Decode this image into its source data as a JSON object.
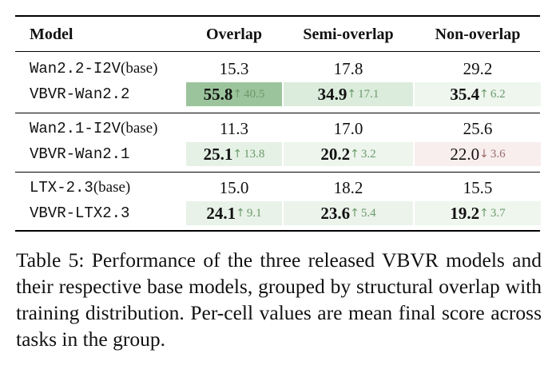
{
  "table": {
    "headers": [
      "Model",
      "Overlap",
      "Semi-overlap",
      "Non-overlap"
    ],
    "groups": [
      {
        "base": {
          "name": "Wan2.2-I2V",
          "suffix": " (base)",
          "values": [
            "15.3",
            "17.8",
            "29.2"
          ]
        },
        "ft": {
          "name": "VBVR-Wan2.2",
          "values": [
            "55.8",
            "34.9",
            "35.4"
          ],
          "deltas": [
            "40.5",
            "17.1",
            "6.2"
          ],
          "directions": [
            "up",
            "up",
            "up"
          ]
        }
      },
      {
        "base": {
          "name": "Wan2.1-I2V",
          "suffix": " (base)",
          "values": [
            "11.3",
            "17.0",
            "25.6"
          ]
        },
        "ft": {
          "name": "VBVR-Wan2.1",
          "values": [
            "25.1",
            "20.2",
            "22.0"
          ],
          "deltas": [
            "13.8",
            "3.2",
            "3.6"
          ],
          "directions": [
            "up",
            "up",
            "down"
          ]
        }
      },
      {
        "base": {
          "name": "LTX-2.3",
          "suffix": " (base)",
          "values": [
            "15.0",
            "18.2",
            "15.5"
          ]
        },
        "ft": {
          "name": "VBVR-LTX2.3",
          "values": [
            "24.1",
            "23.6",
            "19.2"
          ],
          "deltas": [
            "9.1",
            "5.4",
            "3.7"
          ],
          "directions": [
            "up",
            "up",
            "up"
          ]
        }
      }
    ],
    "arrows": {
      "up": "↑",
      "down": "↓"
    },
    "cell_colors": [
      [
        "#9cc49c",
        "#dcecdc",
        "#eef6ee"
      ],
      [
        "#e6f1e6",
        "#edf5ed",
        "#f8eeee"
      ],
      [
        "#e8f2e8",
        "#ebf3eb",
        "#eef6ee"
      ]
    ]
  },
  "caption": "Table 5: Performance of the three released VBVR models and their respective base models, grouped by structural overlap with training distribution. Per-cell values are mean final score across tasks in the group."
}
